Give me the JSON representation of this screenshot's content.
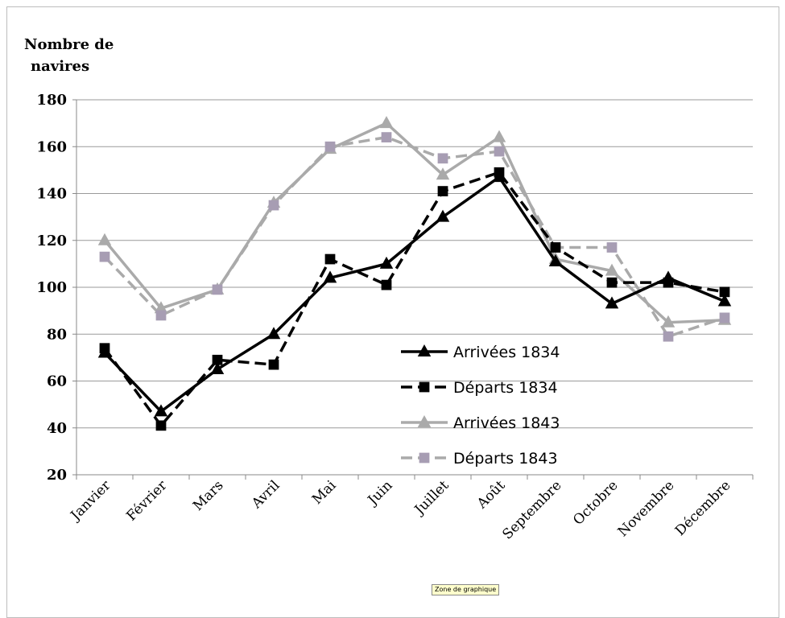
{
  "chart_data": {
    "type": "line",
    "ylabel_lines": [
      "Nombre de",
      "navires"
    ],
    "ylim": [
      20,
      180
    ],
    "yticks": [
      20,
      40,
      60,
      80,
      100,
      120,
      140,
      160,
      180
    ],
    "grid": true,
    "legend_position": "center-right",
    "categories": [
      "Janvier",
      "Février",
      "Mars",
      "Avril",
      "Mai",
      "Juin",
      "Juillet",
      "Août",
      "Septembre",
      "Octobre",
      "Novembre",
      "Décembre"
    ],
    "series": [
      {
        "name": "Arrivées 1834",
        "color": "#000000",
        "dash": "solid",
        "marker": "triangle",
        "values": [
          72,
          47,
          65,
          80,
          104,
          110,
          130,
          147,
          111,
          93,
          104,
          94
        ]
      },
      {
        "name": "Départs 1834",
        "color": "#000000",
        "dash": "dashed",
        "marker": "square",
        "values": [
          74,
          41,
          69,
          67,
          112,
          101,
          141,
          149,
          117,
          102,
          102,
          98
        ]
      },
      {
        "name": "Arrivées 1843",
        "color": "#aaaaaa",
        "dash": "solid",
        "marker": "triangle",
        "values": [
          120,
          91,
          99,
          136,
          159,
          170,
          148,
          164,
          112,
          107,
          85,
          86
        ]
      },
      {
        "name": "Départs 1843",
        "color": "#aaaaaa",
        "dash": "dashed",
        "marker": "square",
        "marker_color": "#a79db3",
        "values": [
          113,
          88,
          99,
          135,
          160,
          164,
          155,
          158,
          117,
          117,
          79,
          87
        ]
      }
    ]
  },
  "tooltip": "Zone de graphique"
}
